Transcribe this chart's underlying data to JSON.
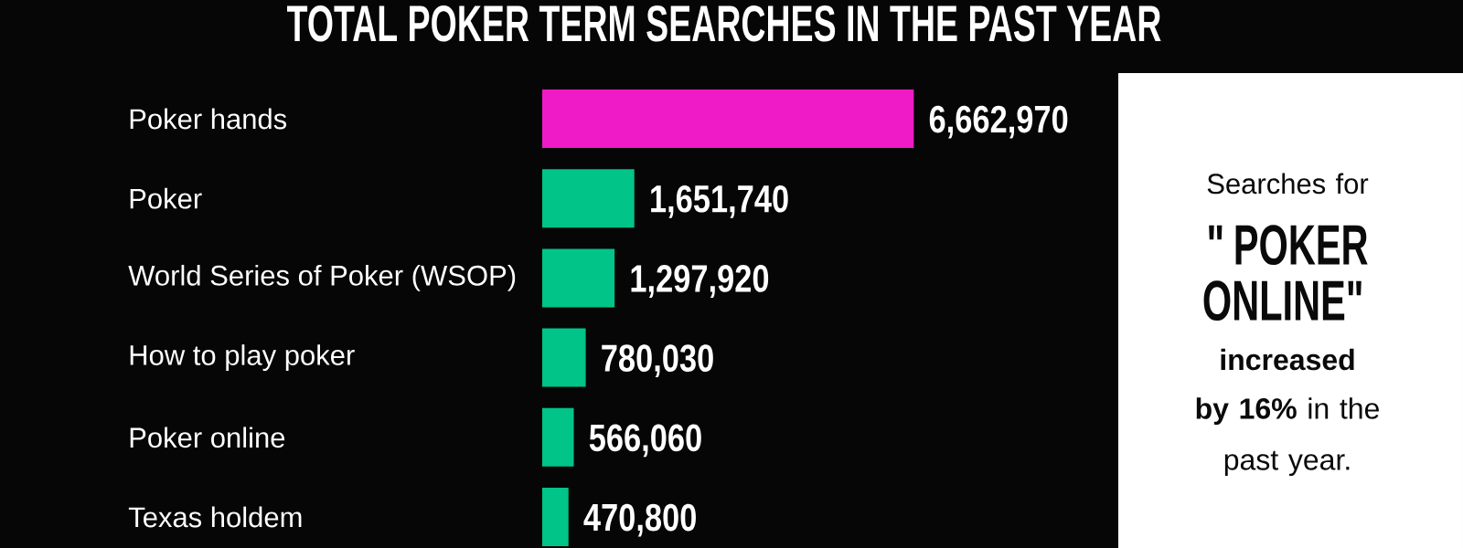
{
  "chart_data": {
    "type": "bar",
    "orientation": "horizontal",
    "title": "TOTAL POKER TERM SEARCHES IN THE PAST YEAR",
    "categories": [
      "Poker hands",
      "Poker",
      "World Series of Poker (WSOP)",
      "How to play poker",
      "Poker online",
      "Texas holdem"
    ],
    "values": [
      6662970,
      1651740,
      1297920,
      780030,
      566060,
      470800
    ],
    "value_labels": [
      "6,662,970",
      "1,651,740",
      "1,297,920",
      "780,030",
      "566,060",
      "470,800"
    ],
    "colors": [
      "#ef1bc6",
      "#00c488",
      "#00c488",
      "#00c488",
      "#00c488",
      "#00c488"
    ],
    "annotations": [
      "Searches for",
      "\"POKER ONLINE\"",
      "**increased**",
      "**by 16%** in the past year."
    ]
  }
}
